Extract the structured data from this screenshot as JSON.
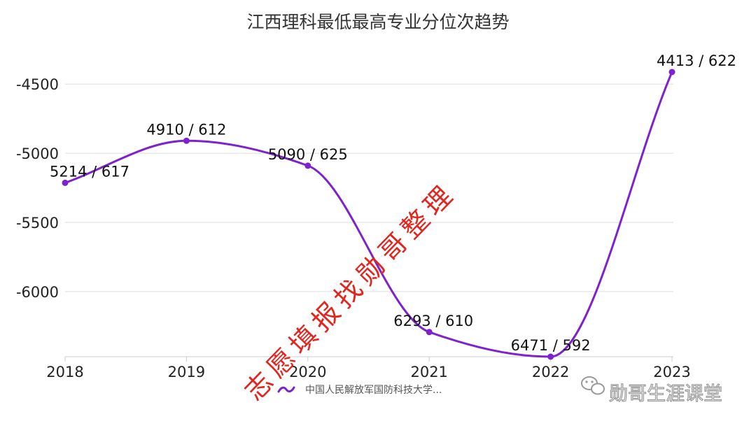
{
  "chart_data": {
    "type": "line",
    "title": "江西理科最低最高专业分位次趋势",
    "categories": [
      "2018",
      "2019",
      "2020",
      "2021",
      "2022",
      "2023"
    ],
    "series": [
      {
        "name": "中国人民解放军国防科技大学...",
        "values": [
          -5214,
          -4910,
          -5090,
          -6293,
          -6471,
          -4413
        ],
        "labels": [
          "5214 / 617",
          "4910 / 612",
          "5090 / 625",
          "6293 / 610",
          "6471 / 592",
          "4413 / 622"
        ],
        "color": "#7e22ce"
      }
    ],
    "y_ticks": [
      "-4500",
      "-5000",
      "-5500",
      "-6000"
    ],
    "ylim": [
      -6471,
      -4413
    ],
    "grid": true,
    "legend_position": "bottom"
  },
  "watermark": "志愿填报找勋哥整理",
  "watermark_color": "#e0261f",
  "brand": {
    "label": "勋哥生涯课堂",
    "icon": "wechat-icon"
  }
}
